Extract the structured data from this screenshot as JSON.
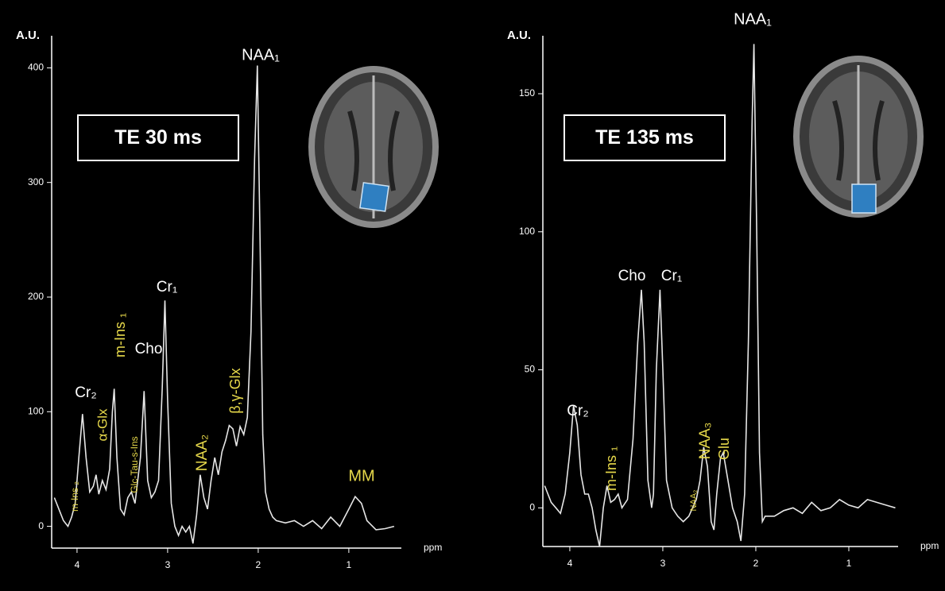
{
  "chart_data": [
    {
      "type": "line",
      "title": "TE 30 ms",
      "y_label": "A.U.",
      "x_label": "ppm",
      "x": [
        4.25,
        4.2,
        4.15,
        4.1,
        4.06,
        4.02,
        3.98,
        3.94,
        3.9,
        3.86,
        3.82,
        3.79,
        3.76,
        3.72,
        3.68,
        3.64,
        3.61,
        3.59,
        3.56,
        3.52,
        3.48,
        3.44,
        3.4,
        3.36,
        3.3,
        3.26,
        3.22,
        3.18,
        3.14,
        3.1,
        3.06,
        3.03,
        3.0,
        2.96,
        2.92,
        2.88,
        2.84,
        2.8,
        2.76,
        2.72,
        2.68,
        2.64,
        2.6,
        2.56,
        2.52,
        2.48,
        2.44,
        2.4,
        2.36,
        2.32,
        2.28,
        2.24,
        2.2,
        2.16,
        2.12,
        2.08,
        2.04,
        2.01,
        1.98,
        1.95,
        1.92,
        1.88,
        1.84,
        1.8,
        1.7,
        1.6,
        1.5,
        1.4,
        1.3,
        1.2,
        1.1,
        1.0,
        0.93,
        0.86,
        0.8,
        0.7,
        0.6,
        0.5
      ],
      "series": [
        {
          "color": "#e6e6e6",
          "values": [
            25,
            15,
            5,
            0,
            8,
            20,
            60,
            98,
            60,
            30,
            35,
            45,
            28,
            40,
            32,
            50,
            100,
            120,
            60,
            15,
            10,
            25,
            30,
            20,
            60,
            118,
            40,
            25,
            30,
            40,
            120,
            197,
            110,
            20,
            0,
            -8,
            0,
            -5,
            0,
            -15,
            10,
            45,
            25,
            15,
            40,
            60,
            45,
            65,
            75,
            88,
            85,
            70,
            87,
            80,
            95,
            170,
            320,
            402,
            250,
            80,
            30,
            15,
            8,
            5,
            3,
            5,
            0,
            5,
            -2,
            8,
            0,
            15,
            26,
            20,
            5,
            -3,
            -2,
            0
          ]
        }
      ],
      "xlim": [
        4.28,
        0.42
      ],
      "ylim": [
        -19,
        428
      ],
      "xticks": [
        4,
        3,
        2,
        1
      ],
      "yticks": [
        0,
        100,
        200,
        300,
        400
      ],
      "annotations": [
        {
          "text": "NAA₁",
          "color": "#ffffff"
        },
        {
          "text": "Cr₁",
          "color": "#ffffff"
        },
        {
          "text": "Cho",
          "color": "#ffffff"
        },
        {
          "text": "Cr₂",
          "color": "#ffffff"
        },
        {
          "text": "m-Ins ₁",
          "color": "#e6d84a"
        },
        {
          "text": "α-Glx",
          "color": "#e6d84a"
        },
        {
          "text": "Glc-Tau-s-Ins",
          "color": "#e6d84a"
        },
        {
          "text": "m-Ins ₂",
          "color": "#e6d84a"
        },
        {
          "text": "NAA₂",
          "color": "#e6d84a"
        },
        {
          "text": "β,γ-Glx",
          "color": "#e6d84a"
        },
        {
          "text": "MM",
          "color": "#e6d84a"
        }
      ]
    },
    {
      "type": "line",
      "title": "TE 135 ms",
      "y_label": "A.U.",
      "x_label": "ppm",
      "x": [
        4.27,
        4.2,
        4.15,
        4.1,
        4.05,
        4.0,
        3.96,
        3.92,
        3.88,
        3.84,
        3.8,
        3.76,
        3.72,
        3.68,
        3.64,
        3.6,
        3.56,
        3.52,
        3.48,
        3.44,
        3.38,
        3.32,
        3.27,
        3.23,
        3.2,
        3.16,
        3.12,
        3.1,
        3.07,
        3.03,
        3.0,
        2.96,
        2.9,
        2.84,
        2.78,
        2.72,
        2.68,
        2.64,
        2.6,
        2.56,
        2.52,
        2.48,
        2.45,
        2.42,
        2.38,
        2.35,
        2.3,
        2.25,
        2.2,
        2.16,
        2.12,
        2.08,
        2.04,
        2.02,
        1.99,
        1.96,
        1.93,
        1.9,
        1.8,
        1.7,
        1.6,
        1.5,
        1.4,
        1.3,
        1.2,
        1.1,
        1.0,
        0.9,
        0.8,
        0.7,
        0.6,
        0.5
      ],
      "series": [
        {
          "color": "#e6e6e6",
          "values": [
            8,
            2,
            0,
            -2,
            5,
            20,
            37,
            30,
            12,
            5,
            5,
            0,
            -8,
            -14,
            0,
            8,
            2,
            3,
            5,
            0,
            3,
            25,
            60,
            79,
            60,
            10,
            0,
            5,
            50,
            79,
            50,
            10,
            0,
            -3,
            -5,
            -3,
            0,
            3,
            10,
            22,
            15,
            -5,
            -8,
            5,
            18,
            20,
            10,
            0,
            -5,
            -12,
            5,
            60,
            140,
            168,
            100,
            20,
            -5,
            -3,
            -3,
            -1,
            0,
            -2,
            2,
            -1,
            0,
            3,
            1,
            0,
            3,
            2,
            1,
            0
          ]
        }
      ],
      "xlim": [
        4.29,
        0.47
      ],
      "ylim": [
        -14,
        171
      ],
      "xticks": [
        4,
        3,
        2,
        1
      ],
      "yticks": [
        0,
        50,
        100,
        150
      ],
      "annotations": [
        {
          "text": "NAA₁",
          "color": "#ffffff"
        },
        {
          "text": "Cho",
          "color": "#ffffff"
        },
        {
          "text": "Cr₁",
          "color": "#ffffff"
        },
        {
          "text": "Cr₂",
          "color": "#ffffff"
        },
        {
          "text": "m-Ins ₁",
          "color": "#e6d84a"
        },
        {
          "text": "NAA₂",
          "color": "#e6d84a"
        },
        {
          "text": "NAA₃",
          "color": "#e6d84a"
        },
        {
          "text": "Glu",
          "color": "#e6d84a"
        }
      ]
    }
  ]
}
